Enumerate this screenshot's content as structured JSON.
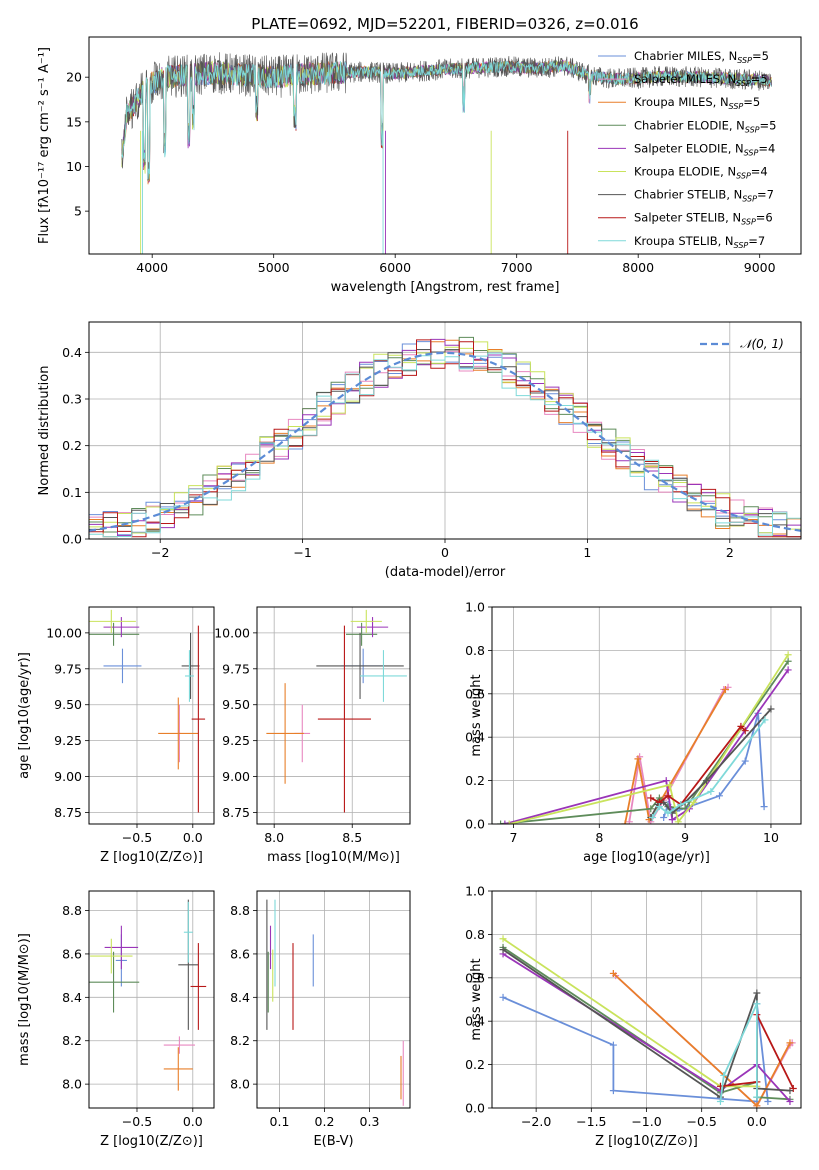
{
  "figure": {
    "title": "PLATE=0692, MJD=52201, FIBERID=0326, z=0.016"
  },
  "colors": [
    "#6a8fd9",
    "#e888c0",
    "#e87f2a",
    "#5e8c5a",
    "#9a35b8",
    "#c9e35c",
    "#555555",
    "#b81818",
    "#7fd9d9"
  ],
  "chart_data": [
    {
      "id": "spectrum",
      "type": "line",
      "xlabel": "wavelength [Angstrom, rest frame]",
      "ylabel": "Flux [fλ10⁻¹⁷ erg cm⁻² s⁻¹ A⁻¹]",
      "xlim": [
        3480,
        9340
      ],
      "ylim": [
        0.2,
        24.5
      ],
      "xticks": [
        4000,
        5000,
        6000,
        7000,
        8000,
        9000
      ],
      "yticks": [
        5,
        10,
        15,
        20
      ],
      "legend": "top-right",
      "series": [
        {
          "name": "Chabrier MILES, N",
          "sub": "SSP",
          "n": "=5"
        },
        {
          "name": "Salpeter MILES, N",
          "sub": "SSP",
          "n": "=5"
        },
        {
          "name": "Kroupa MILES, N",
          "sub": "SSP",
          "n": "=5"
        },
        {
          "name": "Chabrier ELODIE, N",
          "sub": "SSP",
          "n": "=5"
        },
        {
          "name": "Salpeter ELODIE, N",
          "sub": "SSP",
          "n": "=4"
        },
        {
          "name": "Kroupa ELODIE, N",
          "sub": "SSP",
          "n": "=4"
        },
        {
          "name": "Chabrier STELIB, N",
          "sub": "SSP",
          "n": "=7"
        },
        {
          "name": "Salpeter STELIB, N",
          "sub": "SSP",
          "n": "=6"
        },
        {
          "name": "Kroupa STELIB, N",
          "sub": "SSP",
          "n": "=7"
        }
      ],
      "continuum": [
        [
          3750,
          15
        ],
        [
          3850,
          17
        ],
        [
          3950,
          19
        ],
        [
          4100,
          20
        ],
        [
          4300,
          20.2
        ],
        [
          4500,
          20.5
        ],
        [
          4800,
          20.2
        ],
        [
          5000,
          20
        ],
        [
          5200,
          20.3
        ],
        [
          5500,
          20.5
        ],
        [
          5800,
          20.6
        ],
        [
          6000,
          20.4
        ],
        [
          6300,
          20.8
        ],
        [
          6600,
          21
        ],
        [
          6900,
          21.2
        ],
        [
          7200,
          21
        ],
        [
          7400,
          21.3
        ],
        [
          7600,
          20.2
        ],
        [
          7800,
          19.8
        ],
        [
          8000,
          19.9
        ],
        [
          8200,
          20.1
        ],
        [
          8500,
          20
        ],
        [
          8800,
          19.8
        ],
        [
          9100,
          19.6
        ]
      ]
    },
    {
      "id": "residuals",
      "type": "histogram",
      "xlabel": "(data-model)/error",
      "ylabel": "Normed distribution",
      "xlim": [
        -2.5,
        2.5
      ],
      "ylim": [
        0,
        0.465
      ],
      "xticks": [
        -2,
        -1,
        0,
        1,
        2
      ],
      "yticks": [
        0.0,
        0.1,
        0.2,
        0.3,
        0.4
      ],
      "legend": "top-right",
      "reference": {
        "name": "𝒩(0, 1)",
        "mean": 0,
        "sigma": 1
      },
      "bin_width": 0.1
    },
    {
      "id": "age_vs_Z",
      "type": "errorbar",
      "xlabel": "Z [log10(Z/Z⊙)]",
      "ylabel": "age  [log10(age/yr)]",
      "xlim": [
        -0.93,
        0.19
      ],
      "ylim": [
        8.67,
        10.18
      ],
      "xticks": [
        -0.5,
        0.0
      ],
      "yticks": [
        8.75,
        9.0,
        9.25,
        9.5,
        9.75,
        10.0
      ],
      "points": [
        {
          "x": -0.63,
          "xe": 0.17,
          "y": 9.77,
          "ye": 0.12
        },
        {
          "x": -0.12,
          "xe": 0.015,
          "y": 9.3,
          "ye": 0.2
        },
        {
          "x": -0.13,
          "xe": 0.18,
          "y": 9.3,
          "ye": 0.25
        },
        {
          "x": -0.71,
          "xe": 0.23,
          "y": 9.99,
          "ye": 0.08
        },
        {
          "x": -0.64,
          "xe": 0.16,
          "y": 10.04,
          "ye": 0.07
        },
        {
          "x": -0.73,
          "xe": 0.22,
          "y": 10.08,
          "ye": 0.08
        },
        {
          "x": -0.02,
          "xe": 0.08,
          "y": 9.77,
          "ye": 0.23
        },
        {
          "x": 0.05,
          "xe": 0.06,
          "y": 9.4,
          "ye": 0.65
        },
        {
          "x": -0.03,
          "xe": 0.04,
          "y": 9.7,
          "ye": 0.18
        }
      ]
    },
    {
      "id": "age_vs_mass",
      "type": "errorbar",
      "xlabel": "mass [log10(M/M⊙)]",
      "ylabel": "",
      "xlim": [
        7.89,
        8.87
      ],
      "ylim": [
        8.67,
        10.18
      ],
      "xticks": [
        8.0,
        8.5
      ],
      "yticks": [
        8.75,
        9.0,
        9.25,
        9.5,
        9.75,
        10.0
      ],
      "points": [
        {
          "x": 8.57,
          "xe": 0.14,
          "y": 9.77,
          "ye": 0.12
        },
        {
          "x": 8.18,
          "xe": 0.05,
          "y": 9.3,
          "ye": 0.2
        },
        {
          "x": 8.07,
          "xe": 0.12,
          "y": 9.3,
          "ye": 0.35
        },
        {
          "x": 8.56,
          "xe": 0.1,
          "y": 9.99,
          "ye": 0.08
        },
        {
          "x": 8.63,
          "xe": 0.1,
          "y": 10.04,
          "ye": 0.07
        },
        {
          "x": 8.59,
          "xe": 0.1,
          "y": 10.08,
          "ye": 0.08
        },
        {
          "x": 8.55,
          "xe": 0.28,
          "y": 9.77,
          "ye": 0.23
        },
        {
          "x": 8.45,
          "xe": 0.17,
          "y": 9.4,
          "ye": 0.65
        },
        {
          "x": 8.7,
          "xe": 0.15,
          "y": 9.7,
          "ye": 0.18
        }
      ]
    },
    {
      "id": "mass_weight_vs_age",
      "type": "line",
      "xlabel": "age  [log10(age/yr)]",
      "ylabel": "mass weight",
      "xlim": [
        6.75,
        10.35
      ],
      "ylim": [
        0,
        1.0
      ],
      "xticks": [
        7,
        8,
        9,
        10
      ],
      "yticks": [
        0.0,
        0.2,
        0.4,
        0.6,
        0.8,
        1.0
      ],
      "series": [
        {
          "x": [
            8.75,
            8.8,
            8.9,
            9.05,
            9.4,
            9.7,
            9.85,
            9.92
          ],
          "y": [
            0.03,
            0.09,
            0.06,
            0.08,
            0.13,
            0.29,
            0.51,
            0.08
          ]
        },
        {
          "x": [
            8.35,
            8.47,
            8.6,
            8.75,
            9.45,
            9.5
          ],
          "y": [
            0.01,
            0.31,
            0.01,
            0.11,
            0.62,
            0.63
          ]
        },
        {
          "x": [
            8.3,
            8.45,
            8.58,
            8.72,
            9.47
          ],
          "y": [
            0.0,
            0.3,
            0.02,
            0.11,
            0.62
          ]
        },
        {
          "x": [
            6.85,
            8.6,
            8.7,
            8.8,
            9.0,
            10.2
          ],
          "y": [
            0.0,
            0.07,
            0.12,
            0.08,
            0.07,
            0.75
          ]
        },
        {
          "x": [
            6.9,
            8.78,
            8.85,
            9.05,
            10.2
          ],
          "y": [
            0.0,
            0.2,
            0.02,
            0.07,
            0.71
          ]
        },
        {
          "x": [
            6.95,
            8.82,
            8.92,
            9.1,
            10.2
          ],
          "y": [
            0.0,
            0.18,
            0.01,
            0.1,
            0.78
          ]
        },
        {
          "x": [
            8.6,
            8.68,
            8.75,
            8.85,
            9.0,
            9.25,
            10.0
          ],
          "y": [
            0.03,
            0.09,
            0.1,
            0.05,
            0.1,
            0.2,
            0.53
          ]
        },
        {
          "x": [
            8.6,
            8.7,
            8.8,
            8.95,
            9.65,
            9.7
          ],
          "y": [
            0.12,
            0.1,
            0.13,
            0.09,
            0.45,
            0.43
          ]
        },
        {
          "x": [
            8.62,
            8.7,
            8.8,
            8.95,
            9.3,
            9.93
          ],
          "y": [
            0.03,
            0.08,
            0.05,
            0.09,
            0.15,
            0.48
          ]
        }
      ]
    },
    {
      "id": "mass_vs_Z",
      "type": "errorbar",
      "xlabel": "Z [log10(Z/Z⊙)]",
      "ylabel": "mass [log10(M/M⊙)]",
      "xlim": [
        -0.93,
        0.19
      ],
      "ylim": [
        7.89,
        8.89
      ],
      "xticks": [
        -0.5,
        0.0
      ],
      "yticks": [
        8.0,
        8.2,
        8.4,
        8.6,
        8.8
      ],
      "points": [
        {
          "x": -0.64,
          "xe": 0.05,
          "y": 8.57,
          "ye": 0.12
        },
        {
          "x": -0.12,
          "xe": 0.14,
          "y": 8.18,
          "ye": 0.04
        },
        {
          "x": -0.13,
          "xe": 0.13,
          "y": 8.07,
          "ye": 0.1
        },
        {
          "x": -0.71,
          "xe": 0.23,
          "y": 8.47,
          "ye": 0.14
        },
        {
          "x": -0.64,
          "xe": 0.15,
          "y": 8.63,
          "ye": 0.1
        },
        {
          "x": -0.73,
          "xe": 0.19,
          "y": 8.59,
          "ye": 0.08
        },
        {
          "x": -0.04,
          "xe": 0.09,
          "y": 8.55,
          "ye": 0.3
        },
        {
          "x": 0.05,
          "xe": 0.07,
          "y": 8.45,
          "ye": 0.2
        },
        {
          "x": -0.04,
          "xe": 0.04,
          "y": 8.7,
          "ye": 0.14
        }
      ]
    },
    {
      "id": "mass_vs_ebv",
      "type": "errorbar",
      "xlabel": "E(B-V)",
      "ylabel": "",
      "xlim": [
        0.05,
        0.39
      ],
      "ylim": [
        7.89,
        8.89
      ],
      "xticks": [
        0.1,
        0.2,
        0.3
      ],
      "yticks": [
        8.0,
        8.2,
        8.4,
        8.6,
        8.8
      ],
      "points": [
        {
          "x": 0.175,
          "xe": 0,
          "y": 8.57,
          "ye": 0.12
        },
        {
          "x": 0.375,
          "xe": 0,
          "y": 8.05,
          "ye": 0.15
        },
        {
          "x": 0.37,
          "xe": 0,
          "y": 8.03,
          "ye": 0.1
        },
        {
          "x": 0.075,
          "xe": 0,
          "y": 8.47,
          "ye": 0.14
        },
        {
          "x": 0.08,
          "xe": 0,
          "y": 8.63,
          "ye": 0.1
        },
        {
          "x": 0.085,
          "xe": 0,
          "y": 8.5,
          "ye": 0.12
        },
        {
          "x": 0.072,
          "xe": 0,
          "y": 8.55,
          "ye": 0.3
        },
        {
          "x": 0.13,
          "xe": 0,
          "y": 8.45,
          "ye": 0.2
        },
        {
          "x": 0.09,
          "xe": 0,
          "y": 8.65,
          "ye": 0.2
        }
      ]
    },
    {
      "id": "mass_weight_vs_Z",
      "type": "line",
      "xlabel": "Z [log10(Z/Z⊙)]",
      "ylabel": "mass weight",
      "xlim": [
        -2.4,
        0.4
      ],
      "ylim": [
        0,
        1.0
      ],
      "xticks": [
        -2.0,
        -1.5,
        -1.0,
        -0.5,
        0.0
      ],
      "yticks": [
        0.0,
        0.2,
        0.4,
        0.6,
        0.8,
        1.0
      ],
      "series": [
        {
          "x": [
            -2.3,
            -1.3,
            -1.3,
            0.0,
            0.0,
            0.1
          ],
          "y": [
            0.51,
            0.29,
            0.08,
            0.03,
            0.48,
            0.03
          ]
        },
        {
          "x": [
            -1.3,
            -1.28,
            0.0,
            0.3,
            0.32
          ],
          "y": [
            0.62,
            0.61,
            0.01,
            0.29,
            0.3
          ]
        },
        {
          "x": [
            -1.3,
            0.0,
            0.3
          ],
          "y": [
            0.62,
            0.01,
            0.3
          ]
        },
        {
          "x": [
            -2.3,
            -0.33,
            0.0,
            0.0,
            0.3
          ],
          "y": [
            0.74,
            0.07,
            0.12,
            0.05,
            0.04
          ]
        },
        {
          "x": [
            -2.3,
            -0.33,
            0.0,
            0.3
          ],
          "y": [
            0.71,
            0.08,
            0.2,
            0.03
          ]
        },
        {
          "x": [
            -2.3,
            -0.33,
            0.0
          ],
          "y": [
            0.78,
            0.1,
            0.1
          ]
        },
        {
          "x": [
            -2.3,
            -0.33,
            0.0,
            0.0,
            0.3
          ],
          "y": [
            0.73,
            0.05,
            0.53,
            0.09,
            0.08
          ]
        },
        {
          "x": [
            -0.33,
            0.0,
            0.0,
            0.33
          ],
          "y": [
            0.1,
            0.12,
            0.43,
            0.09
          ]
        },
        {
          "x": [
            -0.33,
            -0.3,
            0.0,
            0.0
          ],
          "y": [
            0.03,
            0.15,
            0.48,
            0.05
          ]
        }
      ]
    }
  ]
}
